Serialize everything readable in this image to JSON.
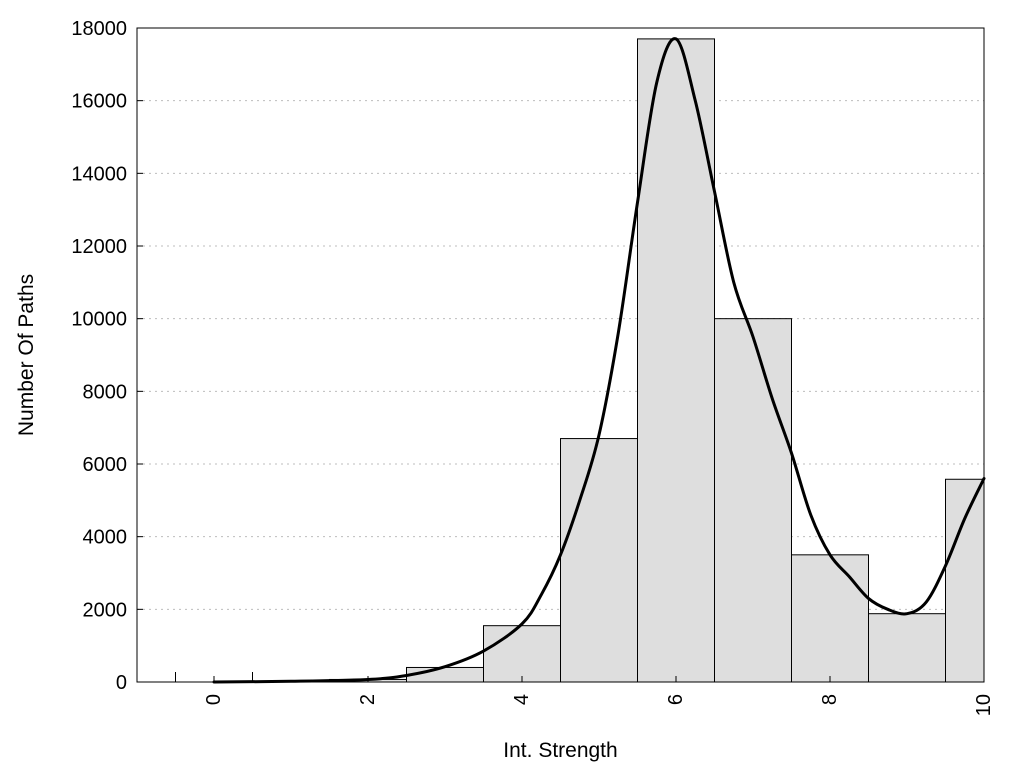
{
  "chart_data": {
    "type": "bar",
    "xlabel": "Int. Strength",
    "ylabel": "Number Of Paths",
    "xlim": [
      -1,
      10
    ],
    "ylim": [
      0,
      18000
    ],
    "x_ticks": [
      "0",
      "2",
      "4",
      "6",
      "8",
      "10"
    ],
    "y_ticks": [
      "0",
      "2000",
      "4000",
      "6000",
      "8000",
      "10000",
      "12000",
      "14000",
      "16000",
      "18000"
    ],
    "grid": "horizontal dotted",
    "bar_color": "#dedede",
    "bars": [
      {
        "center": 0,
        "value": 0
      },
      {
        "center": 1,
        "value": 0
      },
      {
        "center": 2,
        "value": 70
      },
      {
        "center": 3,
        "value": 400
      },
      {
        "center": 4,
        "value": 1550
      },
      {
        "center": 5,
        "value": 6700
      },
      {
        "center": 6,
        "value": 17700
      },
      {
        "center": 7,
        "value": 10000
      },
      {
        "center": 8,
        "value": 3500
      },
      {
        "center": 9,
        "value": 1880
      },
      {
        "center": 10,
        "value": 5580
      }
    ],
    "series": [
      {
        "type": "line",
        "x": [
          0,
          1,
          2,
          2.5,
          3,
          3.5,
          4,
          4.25,
          4.5,
          4.75,
          5,
          5.25,
          5.5,
          5.75,
          6,
          6.25,
          6.5,
          6.75,
          7,
          7.25,
          7.5,
          7.75,
          8,
          8.25,
          8.5,
          8.75,
          9,
          9.25,
          9.5,
          9.75,
          10
        ],
        "y": [
          0,
          20,
          70,
          180,
          420,
          850,
          1600,
          2400,
          3500,
          5000,
          6800,
          9600,
          13200,
          16500,
          17700,
          16000,
          13500,
          11000,
          9500,
          7800,
          6300,
          4600,
          3500,
          2900,
          2300,
          2000,
          1880,
          2200,
          3200,
          4500,
          5600
        ]
      }
    ]
  }
}
